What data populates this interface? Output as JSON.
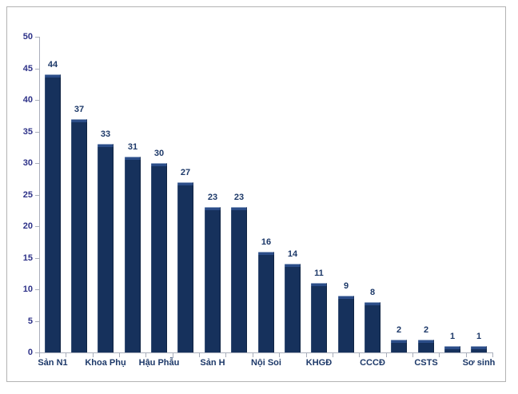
{
  "frame": {
    "background": "#ffffff",
    "border_color": "#b3b3b3"
  },
  "chart_data": {
    "type": "bar",
    "values": [
      44,
      37,
      33,
      31,
      30,
      27,
      23,
      23,
      16,
      14,
      11,
      9,
      8,
      2,
      2,
      1,
      1
    ],
    "x_tick_labels": [
      "Sản N1",
      "Khoa Phụ",
      "Hậu Phẫu",
      "Sản H",
      "Nội Soi",
      "KHGĐ",
      "CCCĐ",
      "CSTS",
      "Sơ sinh"
    ],
    "x_tick_label_positions": [
      0,
      2,
      4,
      6,
      8,
      10,
      12,
      14,
      16
    ],
    "y_ticks": [
      0,
      5,
      10,
      15,
      20,
      25,
      30,
      35,
      40,
      45,
      50
    ],
    "ylim": [
      0,
      50
    ],
    "title": "",
    "xlabel": "",
    "ylabel": "",
    "grid": false,
    "legend": false,
    "data_labels": true,
    "bar_color": "#16315c",
    "bar_cap_color": "#2b4d88",
    "value_label_color": "#1d3969",
    "axis_text_color": "#2d3188",
    "axis_line_color": "#a9aebb"
  }
}
